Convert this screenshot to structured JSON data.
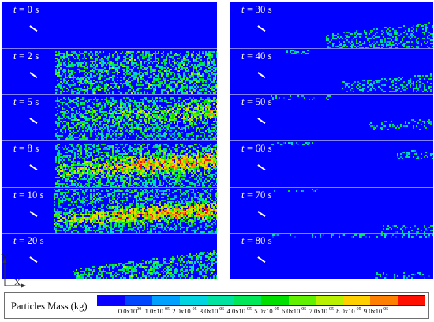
{
  "left_frames": [
    {
      "t": "t",
      "label": " = 0 s"
    },
    {
      "t": "t",
      "label": " = 2 s"
    },
    {
      "t": "t",
      "label": " = 5 s"
    },
    {
      "t": "t",
      "label": " = 8 s"
    },
    {
      "t": "t",
      "label": " = 10 s"
    },
    {
      "t": "t",
      "label": " = 20 s"
    }
  ],
  "right_frames": [
    {
      "t": "t",
      "label": " = 30 s"
    },
    {
      "t": "t",
      "label": " = 40 s"
    },
    {
      "t": "t",
      "label": " = 50 s"
    },
    {
      "t": "t",
      "label": " = 60 s"
    },
    {
      "t": "t",
      "label": " = 70 s"
    },
    {
      "t": "t",
      "label": " = 80 s"
    }
  ],
  "axes": {
    "y": "Y",
    "x": "X"
  },
  "legend": {
    "title": "Particles Mass (kg)",
    "colors": [
      "#0a00ff",
      "#0046ff",
      "#00a0ff",
      "#00d4e0",
      "#00e2a0",
      "#00e85a",
      "#00e000",
      "#60f000",
      "#b8f000",
      "#ffd000",
      "#ff8000",
      "#ff1000"
    ],
    "ticks": [
      {
        "mant": "0.0x10",
        "exp": "00"
      },
      {
        "mant": "1.0x10",
        "exp": "-05"
      },
      {
        "mant": "2.0x10",
        "exp": "-05"
      },
      {
        "mant": "3.0x10",
        "exp": "-05"
      },
      {
        "mant": "4.0x10",
        "exp": "-05"
      },
      {
        "mant": "5.0x10",
        "exp": "-05"
      },
      {
        "mant": "6.0x10",
        "exp": "-05"
      },
      {
        "mant": "7.0x10",
        "exp": "-05"
      },
      {
        "mant": "8.0x10",
        "exp": "-05"
      },
      {
        "mant": "9.0x10",
        "exp": "-05"
      }
    ]
  }
}
